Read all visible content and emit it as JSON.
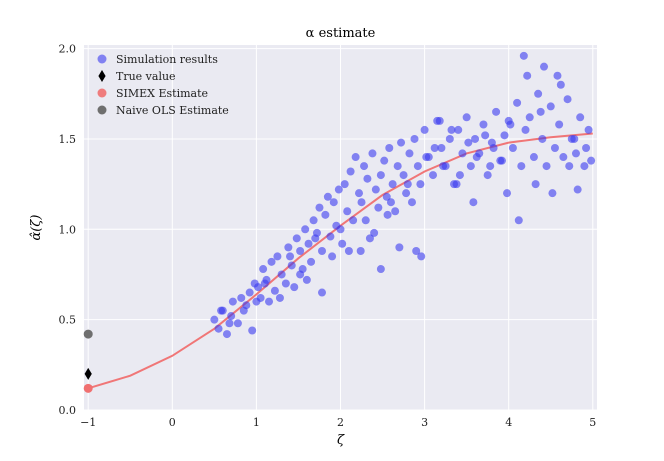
{
  "chart_data": {
    "type": "scatter",
    "title": "α estimate",
    "xlabel": "ζ",
    "ylabel": "α̂(ζ)",
    "xlim": [
      -1.05,
      5.05
    ],
    "ylim": [
      0.0,
      2.02
    ],
    "xticks": [
      -1,
      0,
      1,
      2,
      3,
      4,
      5
    ],
    "yticks": [
      0.0,
      0.5,
      1.0,
      1.5,
      2.0
    ],
    "xtick_labels": [
      "−1",
      "0",
      "1",
      "2",
      "3",
      "4",
      "5"
    ],
    "ytick_labels": [
      "0.0",
      "0.5",
      "1.0",
      "1.5",
      "2.0"
    ],
    "grid": true,
    "legend_position": "top-left",
    "colors": {
      "background": "#eaeaf2",
      "grid": "#ffffff",
      "simulation": "#3a3af0",
      "true_value": "#000000",
      "simex": "#f07070",
      "naive": "#6f6f6f"
    },
    "legend": [
      {
        "key": "simulation",
        "label": "Simulation results"
      },
      {
        "key": "true_value",
        "label": "True value"
      },
      {
        "key": "simex",
        "label": "SIMEX Estimate"
      },
      {
        "key": "naive",
        "label": "Naive OLS Estimate"
      }
    ],
    "true_value": {
      "x": -1,
      "y": 0.2
    },
    "simex_estimate": {
      "x": -1,
      "y": 0.12
    },
    "naive_ols_estimate": {
      "x": -1,
      "y": 0.42
    },
    "simex_curve": {
      "x": [
        -1.0,
        -0.5,
        0.0,
        0.5,
        1.0,
        1.5,
        2.0,
        2.5,
        3.0,
        3.5,
        4.0,
        4.5,
        5.0
      ],
      "y": [
        0.12,
        0.19,
        0.3,
        0.45,
        0.64,
        0.84,
        1.02,
        1.19,
        1.32,
        1.42,
        1.48,
        1.51,
        1.53
      ]
    },
    "simulation_results": {
      "x": [
        0.5,
        0.55,
        0.6,
        0.65,
        0.7,
        0.72,
        0.78,
        0.82,
        0.88,
        0.92,
        0.95,
        0.98,
        1.02,
        1.05,
        1.08,
        1.12,
        1.15,
        1.18,
        1.22,
        1.25,
        1.3,
        1.35,
        1.38,
        1.42,
        1.45,
        1.48,
        1.52,
        1.55,
        1.58,
        1.62,
        1.65,
        1.68,
        1.72,
        1.75,
        1.78,
        1.82,
        1.85,
        1.88,
        1.92,
        1.95,
        1.98,
        2.02,
        2.05,
        2.08,
        2.12,
        2.15,
        2.18,
        2.22,
        2.25,
        2.28,
        2.32,
        2.35,
        2.38,
        2.42,
        2.45,
        2.48,
        2.52,
        2.55,
        2.58,
        2.62,
        2.65,
        2.68,
        2.72,
        2.75,
        2.78,
        2.82,
        2.85,
        2.88,
        2.92,
        2.95,
        3.0,
        3.05,
        3.1,
        3.15,
        3.2,
        3.25,
        3.3,
        3.35,
        3.4,
        3.45,
        3.5,
        3.55,
        3.6,
        3.65,
        3.7,
        3.75,
        3.8,
        3.85,
        3.9,
        3.95,
        4.0,
        4.05,
        4.1,
        4.15,
        4.2,
        4.25,
        4.3,
        4.35,
        4.4,
        4.45,
        4.5,
        4.55,
        4.6,
        4.65,
        4.7,
        4.75,
        4.8,
        4.85,
        4.9,
        4.95,
        0.58,
        0.68,
        0.85,
        1.0,
        1.1,
        1.28,
        1.4,
        1.6,
        1.7,
        1.9,
        2.0,
        2.1,
        2.3,
        2.4,
        2.6,
        2.7,
        2.8,
        3.02,
        3.12,
        3.22,
        3.32,
        3.42,
        3.52,
        3.62,
        3.72,
        3.82,
        3.92,
        4.02,
        4.12,
        4.22,
        4.32,
        4.42,
        4.52,
        4.62,
        4.72,
        4.82,
        4.92,
        3.18,
        3.38,
        3.58,
        3.78,
        3.98,
        4.18,
        4.38,
        4.58,
        4.78,
        4.98,
        1.52,
        1.78,
        2.24,
        2.48,
        2.96,
        2.56,
        2.9
      ],
      "y": [
        0.5,
        0.45,
        0.55,
        0.42,
        0.52,
        0.6,
        0.48,
        0.62,
        0.58,
        0.65,
        0.44,
        0.7,
        0.68,
        0.62,
        0.78,
        0.72,
        0.6,
        0.82,
        0.66,
        0.85,
        0.75,
        0.7,
        0.9,
        0.8,
        0.68,
        0.95,
        0.88,
        0.78,
        1.0,
        0.92,
        0.82,
        1.05,
        0.98,
        1.12,
        0.88,
        1.08,
        1.18,
        0.96,
        1.15,
        1.02,
        1.22,
        0.92,
        1.25,
        1.1,
        1.32,
        1.05,
        1.4,
        1.2,
        1.15,
        1.35,
        1.28,
        0.95,
        1.42,
        1.22,
        1.12,
        1.3,
        1.38,
        1.18,
        1.45,
        1.25,
        1.1,
        1.35,
        1.48,
        1.3,
        1.2,
        1.42,
        1.15,
        1.5,
        1.35,
        1.25,
        1.55,
        1.4,
        1.3,
        1.6,
        1.45,
        1.35,
        1.5,
        1.25,
        1.55,
        1.42,
        1.62,
        1.35,
        1.5,
        1.42,
        1.58,
        1.3,
        1.48,
        1.65,
        1.38,
        1.52,
        1.6,
        1.45,
        1.7,
        1.35,
        1.55,
        1.62,
        1.4,
        1.75,
        1.5,
        1.35,
        1.68,
        1.45,
        1.58,
        1.4,
        1.72,
        1.5,
        1.42,
        1.62,
        1.35,
        1.55,
        0.55,
        0.48,
        0.55,
        0.6,
        0.7,
        0.62,
        0.85,
        0.72,
        0.95,
        0.85,
        1.0,
        0.88,
        1.05,
        0.98,
        1.15,
        0.9,
        1.25,
        1.4,
        1.45,
        1.35,
        1.55,
        1.3,
        1.48,
        1.4,
        1.52,
        1.45,
        1.38,
        1.58,
        1.05,
        1.85,
        1.25,
        1.9,
        1.2,
        1.8,
        1.35,
        1.22,
        1.45,
        1.6,
        1.25,
        1.15,
        1.35,
        1.2,
        1.96,
        1.65,
        1.85,
        1.5,
        1.38,
        0.75,
        0.65,
        0.88,
        0.78,
        0.85,
        1.08,
        0.88
      ]
    }
  }
}
